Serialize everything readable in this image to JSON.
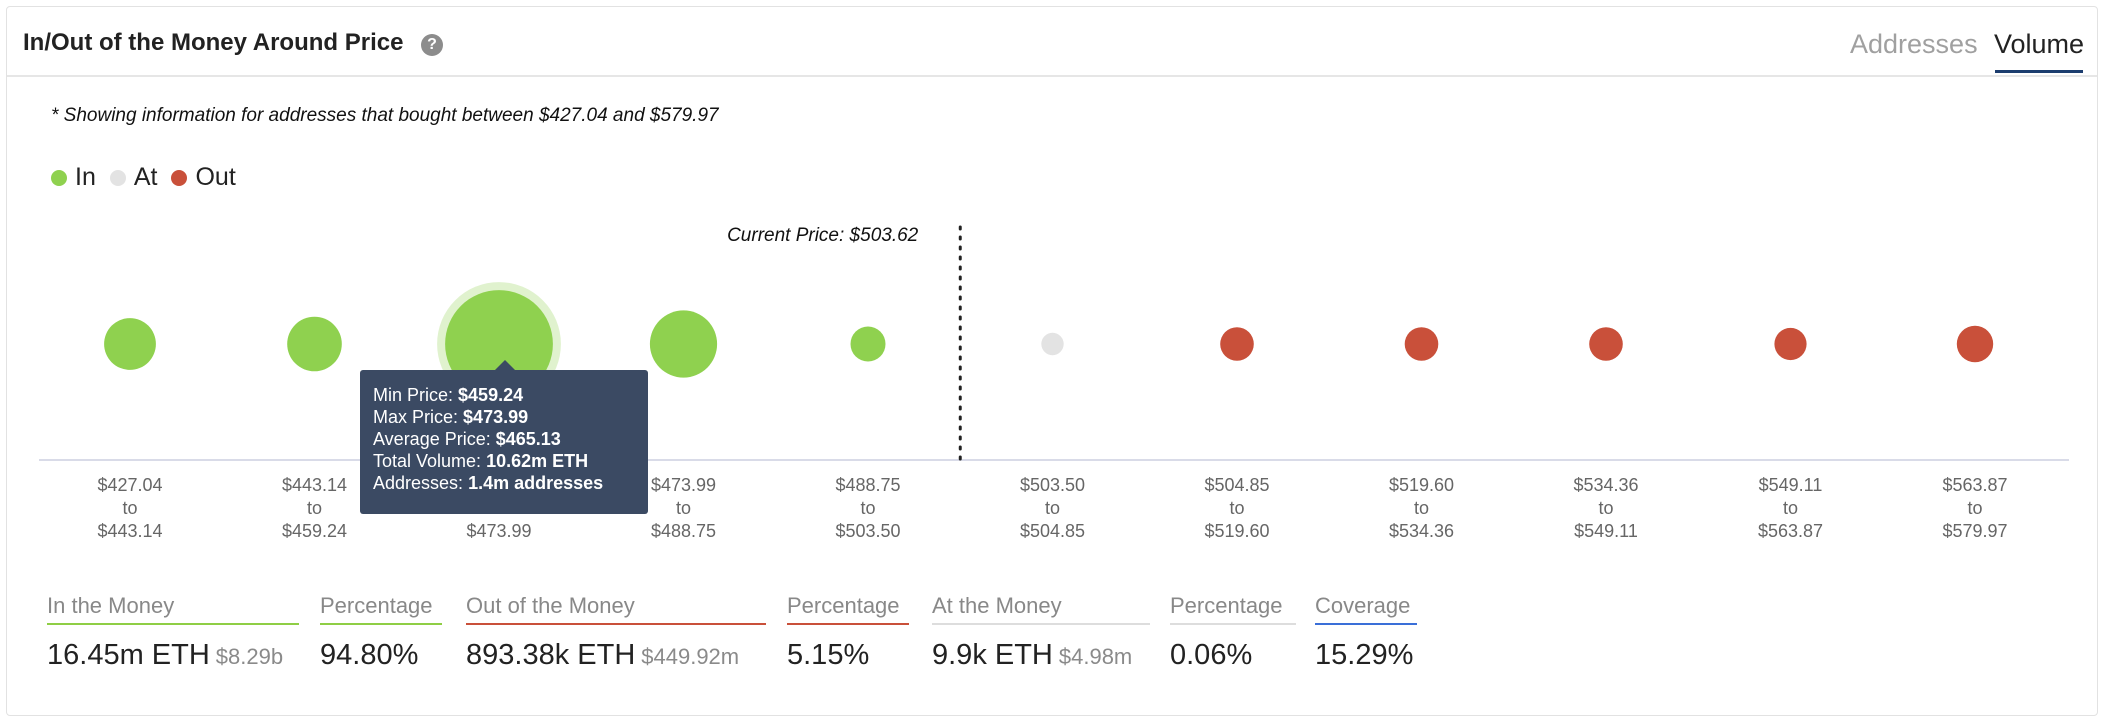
{
  "header": {
    "title": "In/Out of the Money Around Price",
    "help_icon": "question-circle-icon",
    "help_glyph": "?",
    "tabs": [
      "Addresses",
      "Volume"
    ],
    "active_tab": "Volume"
  },
  "note": "* Showing information for addresses that bought between $427.04 and $579.97",
  "colors": {
    "in": "#8fd14f",
    "at": "#e3e3e3",
    "out": "#c9503a",
    "tooltip_bg": "#3b4a63",
    "accent": "#1c3d6e"
  },
  "legend": [
    {
      "label": "In",
      "color": "#8fd14f"
    },
    {
      "label": "At",
      "color": "#e3e3e3"
    },
    {
      "label": "Out",
      "color": "#c9503a"
    }
  ],
  "chart_data": {
    "type": "scatter",
    "current_price_label": "Current Price: $503.62",
    "current_price_position": "between bins 5 and 6",
    "buckets": [
      {
        "from": "$427.04",
        "to": "$443.14",
        "status": "in",
        "relative_size": 0.37
      },
      {
        "from": "$443.14",
        "to": "$459.24",
        "status": "in",
        "relative_size": 0.39
      },
      {
        "from": "$459.24",
        "to": "$473.99",
        "status": "in",
        "relative_size": 0.77,
        "highlighted": true
      },
      {
        "from": "$473.99",
        "to": "$488.75",
        "status": "in",
        "relative_size": 0.48
      },
      {
        "from": "$488.75",
        "to": "$503.50",
        "status": "in",
        "relative_size": 0.25
      },
      {
        "from": "$503.50",
        "to": "$504.85",
        "status": "at",
        "relative_size": 0.16
      },
      {
        "from": "$504.85",
        "to": "$519.60",
        "status": "out",
        "relative_size": 0.24
      },
      {
        "from": "$519.60",
        "to": "$534.36",
        "status": "out",
        "relative_size": 0.24
      },
      {
        "from": "$534.36",
        "to": "$549.11",
        "status": "out",
        "relative_size": 0.24
      },
      {
        "from": "$549.11",
        "to": "$563.87",
        "status": "out",
        "relative_size": 0.23
      },
      {
        "from": "$563.87",
        "to": "$579.97",
        "status": "out",
        "relative_size": 0.26
      }
    ],
    "range_word": "to"
  },
  "tooltip": {
    "min_price_label": "Min Price:",
    "min_price": "$459.24",
    "max_price_label": "Max Price:",
    "max_price": "$473.99",
    "avg_price_label": "Average Price:",
    "avg_price": "$465.13",
    "volume_label": "Total Volume:",
    "volume": "10.62m ETH",
    "addresses_label": "Addresses:",
    "addresses": "1.4m addresses"
  },
  "stats": {
    "in_money": {
      "label": "In the Money",
      "value": "16.45m ETH",
      "sub": "$8.29b"
    },
    "in_pct": {
      "label": "Percentage",
      "value": "94.80%"
    },
    "out_money": {
      "label": "Out of the Money",
      "value": "893.38k ETH",
      "sub": "$449.92m"
    },
    "out_pct": {
      "label": "Percentage",
      "value": "5.15%"
    },
    "at_money": {
      "label": "At the Money",
      "value": "9.9k ETH",
      "sub": "$4.98m"
    },
    "at_pct": {
      "label": "Percentage",
      "value": "0.06%"
    },
    "coverage": {
      "label": "Coverage",
      "value": "15.29%"
    }
  }
}
